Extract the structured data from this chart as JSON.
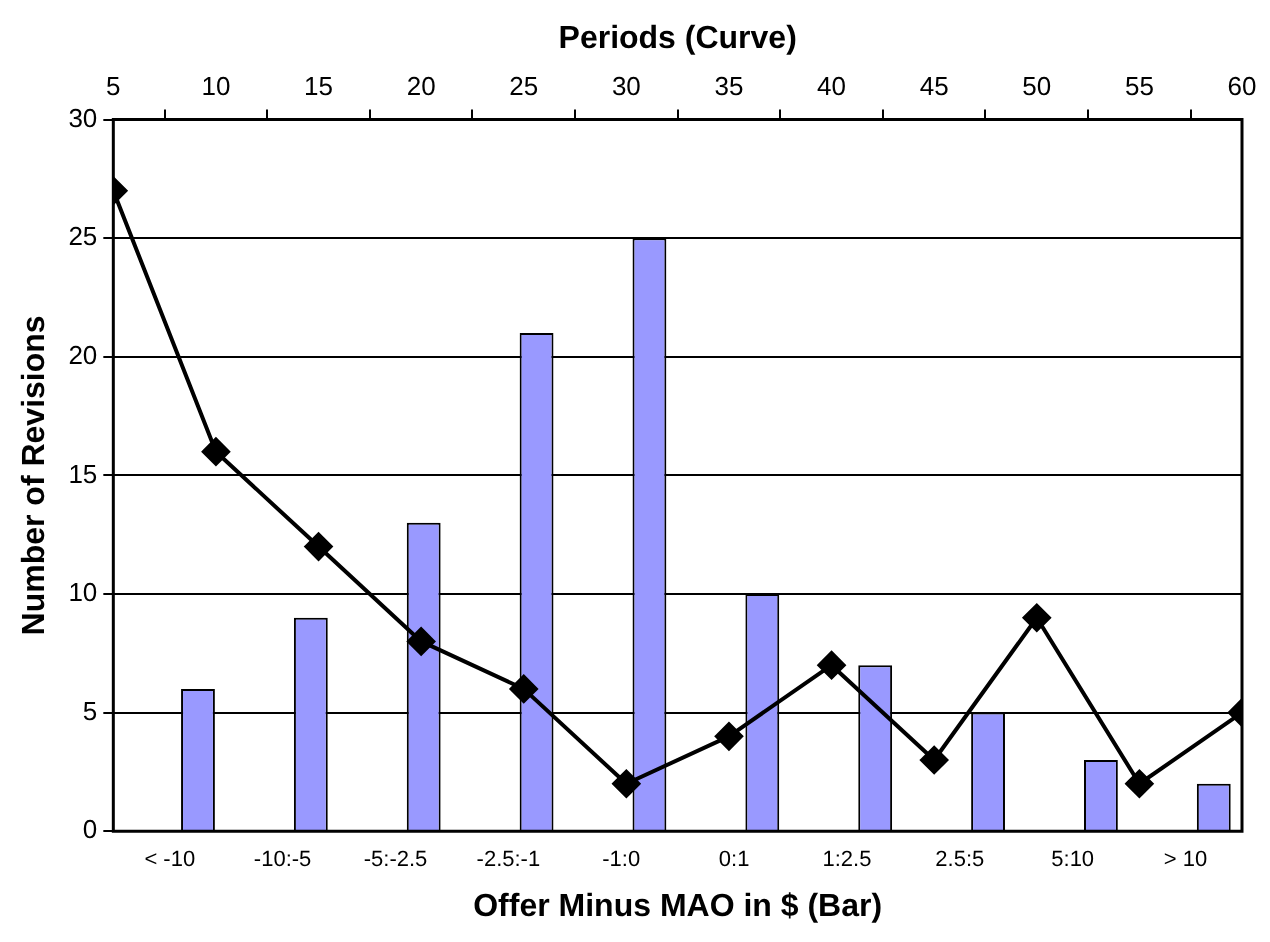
{
  "chart_data": {
    "type": "bar",
    "xlabel": "Offer Minus MAO in $ (Bar)",
    "ylabel": "Number of Revisions",
    "x2label": "Periods (Curve)",
    "categories": [
      "< -10",
      "-10:-5",
      "-5:-2.5",
      "-2.5:-1",
      "-1:0",
      "0:1",
      "1:2.5",
      "2.5:5",
      "5:10",
      "> 10"
    ],
    "series": [
      {
        "type": "bar",
        "color": "#9999ff",
        "values": [
          6,
          9,
          13,
          21,
          25,
          10,
          7,
          5,
          3,
          2
        ]
      },
      {
        "type": "line",
        "axis": "x2",
        "color": "#000000",
        "marker": "diamond",
        "line_style": "solid",
        "x": [
          5,
          10,
          15,
          20,
          25,
          30,
          35,
          40,
          45,
          50,
          55,
          60
        ],
        "values": [
          27,
          16,
          12,
          8,
          6,
          2,
          4,
          7,
          3,
          9,
          2,
          5
        ]
      }
    ],
    "ylim": [
      0,
      30
    ],
    "yticks": [
      0,
      5,
      10,
      15,
      20,
      25,
      30
    ],
    "x2lim": [
      5,
      60
    ],
    "x2ticks": [
      5,
      10,
      15,
      20,
      25,
      30,
      35,
      40,
      45,
      50,
      55,
      60
    ],
    "grid": "y",
    "legend": false
  }
}
